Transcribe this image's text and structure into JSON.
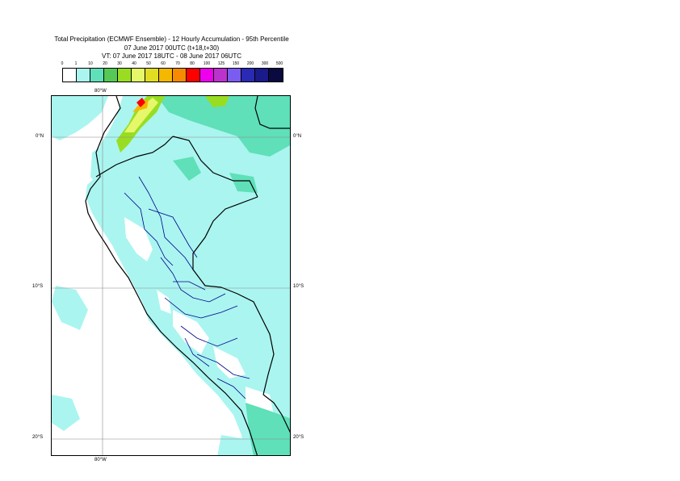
{
  "title": {
    "line1": "Total Precipitation (ECMWF Ensemble) - 12 Hourly Accumulation - 95th Percentile",
    "line2": "07 June 2017 00UTC (t+18,t+30)",
    "line3": "VT: 07 June 2017 18UTC - 08 June 2017 06UTC"
  },
  "legend": {
    "labels": [
      "0",
      "1",
      "10",
      "20",
      "30",
      "40",
      "50",
      "60",
      "70",
      "80",
      "100",
      "125",
      "150",
      "200",
      "300",
      "500"
    ],
    "colors": [
      "#ffffff",
      "#aaf5f0",
      "#5fe0b8",
      "#55c855",
      "#99dd22",
      "#e6f76a",
      "#e0dd22",
      "#f5b800",
      "#f78a00",
      "#ff0000",
      "#ee00ee",
      "#bb33cc",
      "#7b5cf0",
      "#2a2ab5",
      "#1a1a8a",
      "#0a0a40"
    ]
  },
  "axes": {
    "lon_top": "80°W",
    "lon_bottom": "80°W",
    "lat_left": [
      "0°N",
      "10°S",
      "20°S"
    ],
    "lat_right": [
      "0°N",
      "10°S",
      "20°S"
    ]
  },
  "map": {
    "region": "Peru",
    "colors": {
      "ocean": "#ffffff",
      "light_precip": "#aaf5f0",
      "moderate_precip": "#5fe0b8",
      "heavy_precip": "#99dd22",
      "peak_precip": "#e6f76a",
      "max_precip": "#ff0000",
      "borders": "#000000",
      "regions": "#00008b",
      "gridlines": "#888888"
    }
  }
}
